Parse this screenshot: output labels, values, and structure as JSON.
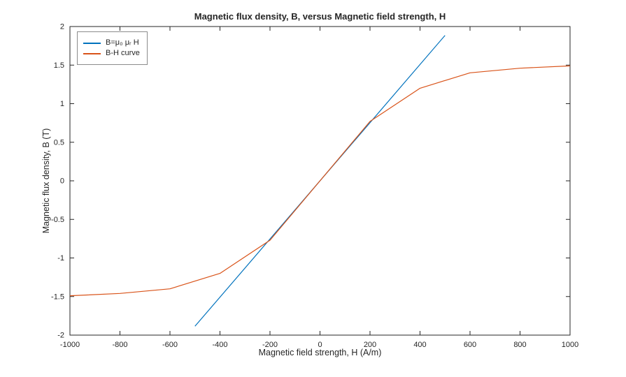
{
  "chart_data": {
    "type": "line",
    "title": "Magnetic flux density, B, versus Magnetic field strength, H",
    "xlabel": "Magnetic field strength, H (A/m)",
    "ylabel": "Magnetic flux density, B (T)",
    "xlim": [
      -1000,
      1000
    ],
    "ylim": [
      -2,
      2
    ],
    "xticks": [
      -1000,
      -800,
      -600,
      -400,
      -200,
      0,
      200,
      400,
      600,
      800,
      1000
    ],
    "yticks": [
      -2,
      -1.5,
      -1,
      -0.5,
      0,
      0.5,
      1,
      1.5,
      2
    ],
    "grid": false,
    "legend_position": "top-left",
    "axes_color": "#262626",
    "series": [
      {
        "name": "B=μ₀ μᵣ H",
        "color": "#0072BD",
        "x": [
          -500,
          500
        ],
        "y": [
          -1.885,
          1.885
        ]
      },
      {
        "name": "B-H curve",
        "color": "#D95319",
        "x": [
          -1000,
          -800,
          -600,
          -400,
          -200,
          0,
          200,
          400,
          600,
          800,
          1000
        ],
        "y": [
          -1.49,
          -1.46,
          -1.4,
          -1.2,
          -0.77,
          0,
          0.77,
          1.2,
          1.4,
          1.46,
          1.49
        ]
      }
    ]
  }
}
